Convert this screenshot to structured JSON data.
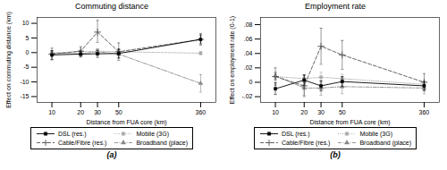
{
  "chart_data": [
    {
      "type": "line",
      "title": "Commuting distance",
      "xlabel": "Distance from FUA core (km)",
      "ylabel": "Effect on commuting distance (km)",
      "caption": "(a)",
      "log": "x",
      "legend": "bottom",
      "x": [
        10,
        20,
        30,
        50,
        360
      ],
      "xlim": [
        7,
        520
      ],
      "xticks": [
        10,
        20,
        30,
        50,
        360
      ],
      "ylim": [
        -17,
        12
      ],
      "yticks": [
        -15,
        -10,
        -5,
        0,
        5,
        10
      ],
      "series": [
        {
          "name": "DSL (res.)",
          "color": "#000000",
          "marker": "square",
          "line_style": "solid",
          "values": [
            -0.8,
            -0.5,
            -0.4,
            -0.3,
            4.5
          ],
          "yerr_lo": [
            1.5,
            1.0,
            1.2,
            1.5,
            1.5
          ],
          "yerr_hi": [
            1.5,
            1.0,
            1.2,
            1.5,
            1.5
          ]
        },
        {
          "name": "Cable/Fibre (res.)",
          "color": "#555555",
          "marker": "plus",
          "line_style": "dashed",
          "values": [
            -0.5,
            0.5,
            7.0,
            0.3,
            4.5
          ],
          "yerr_lo": [
            2.0,
            1.5,
            3.5,
            3.0,
            2.0
          ],
          "yerr_hi": [
            2.0,
            1.5,
            4.0,
            3.0,
            2.0
          ]
        },
        {
          "name": "Mobile (3G)",
          "color": "#aaaaaa",
          "marker": "square",
          "line_style": "dotted",
          "values": [
            -0.1,
            0.3,
            0.5,
            0.3,
            -0.2
          ],
          "yerr_lo": [
            0.7,
            0.5,
            0.8,
            0.8,
            0.5
          ],
          "yerr_hi": [
            0.7,
            0.5,
            0.8,
            0.8,
            0.5
          ]
        },
        {
          "name": "Broadband (place)",
          "color": "#888888",
          "marker": "triangle",
          "line_style": "dashdot",
          "values": [
            -0.2,
            -0.4,
            0.3,
            -0.5,
            -10.5
          ],
          "yerr_lo": [
            0.5,
            0.8,
            1.0,
            1.5,
            3.0
          ],
          "yerr_hi": [
            0.5,
            0.8,
            1.0,
            1.5,
            3.0
          ]
        }
      ]
    },
    {
      "type": "line",
      "title": "Employment rate",
      "xlabel": "Distance from FUA core (km)",
      "ylabel": "Effect on employment rate (0-1)",
      "caption": "(b)",
      "log": "x",
      "legend": "bottom",
      "x": [
        10,
        20,
        30,
        50,
        360
      ],
      "xlim": [
        7,
        520
      ],
      "xticks": [
        10,
        20,
        30,
        50,
        360
      ],
      "ylim": [
        -0.028,
        0.09
      ],
      "yticks": [
        {
          "value": -0.02,
          "label": "-.02"
        },
        0,
        {
          "value": 0.02,
          "label": ".02"
        },
        {
          "value": 0.04,
          "label": ".04"
        },
        {
          "value": 0.06,
          "label": ".06"
        },
        {
          "value": 0.08,
          "label": ".08"
        }
      ],
      "series": [
        {
          "name": "DSL (res.)",
          "color": "#000000",
          "marker": "square",
          "line_style": "solid",
          "values": [
            -0.009,
            0.003,
            -0.005,
            0.001,
            -0.005
          ],
          "yerr_lo": [
            0.008,
            0.007,
            0.007,
            0.007,
            0.006
          ],
          "yerr_hi": [
            0.008,
            0.007,
            0.007,
            0.007,
            0.006
          ]
        },
        {
          "name": "Cable/Fibre (res.)",
          "color": "#555555",
          "marker": "plus",
          "line_style": "dashed",
          "values": [
            0.008,
            -0.005,
            0.05,
            0.038,
            0.0
          ],
          "yerr_lo": [
            0.012,
            0.015,
            0.025,
            0.02,
            0.012
          ],
          "yerr_hi": [
            0.012,
            0.015,
            0.025,
            0.02,
            0.012
          ]
        },
        {
          "name": "Mobile (3G)",
          "color": "#aaaaaa",
          "marker": "square",
          "line_style": "dotted",
          "values": [
            0.008,
            0.005,
            0.007,
            0.005,
            -0.003
          ],
          "yerr_lo": [
            0.005,
            0.005,
            0.007,
            0.006,
            0.005
          ],
          "yerr_hi": [
            0.005,
            0.005,
            0.007,
            0.006,
            0.005
          ]
        },
        {
          "name": "Broadband (place)",
          "color": "#888888",
          "marker": "triangle",
          "line_style": "dashdot",
          "values": [
            0.009,
            -0.008,
            -0.008,
            -0.006,
            -0.008
          ],
          "yerr_lo": [
            0.005,
            0.01,
            0.01,
            0.01,
            0.008
          ],
          "yerr_hi": [
            0.005,
            0.01,
            0.01,
            0.01,
            0.008
          ]
        }
      ]
    }
  ]
}
